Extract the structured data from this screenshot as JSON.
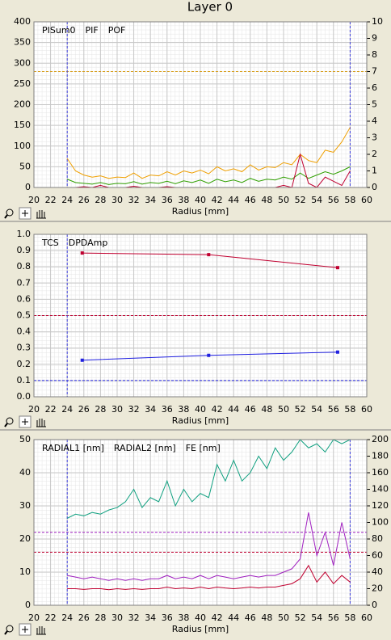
{
  "page_title": "Layer 0",
  "chart_data": [
    {
      "type": "line",
      "xlabel": "Radius [mm]",
      "xlim": [
        20,
        60
      ],
      "xticks": [
        20,
        22,
        24,
        26,
        28,
        30,
        32,
        34,
        36,
        38,
        40,
        42,
        44,
        46,
        48,
        50,
        52,
        54,
        56,
        58,
        60
      ],
      "ylim": [
        0,
        400
      ],
      "yticks": [
        0,
        50,
        100,
        150,
        200,
        250,
        300,
        350,
        400
      ],
      "y2lim": [
        0,
        10
      ],
      "y2ticks": [
        0,
        1,
        2,
        3,
        4,
        5,
        6,
        7,
        8,
        9,
        10
      ],
      "grid": true,
      "hlines": [
        {
          "value": 280,
          "color": "#d8a020"
        }
      ],
      "vlines": [
        {
          "value": 24,
          "color": "#4040e0"
        },
        {
          "value": 58,
          "color": "#4040e0"
        }
      ],
      "x": [
        24,
        25,
        26,
        27,
        28,
        29,
        30,
        31,
        32,
        33,
        34,
        35,
        36,
        37,
        38,
        39,
        40,
        41,
        42,
        43,
        44,
        45,
        46,
        47,
        48,
        49,
        50,
        51,
        52,
        53,
        54,
        55,
        56,
        57,
        58
      ],
      "series": [
        {
          "name": "PISum0",
          "color": "#f0a000",
          "values": [
            70,
            40,
            30,
            25,
            28,
            22,
            25,
            24,
            35,
            22,
            30,
            28,
            38,
            30,
            40,
            35,
            42,
            33,
            50,
            40,
            45,
            38,
            55,
            42,
            50,
            48,
            60,
            55,
            80,
            65,
            60,
            90,
            85,
            110,
            145
          ]
        },
        {
          "name": "PIF",
          "color": "#30a000",
          "values": [
            20,
            12,
            10,
            8,
            12,
            7,
            10,
            9,
            14,
            8,
            12,
            10,
            15,
            9,
            16,
            12,
            18,
            10,
            20,
            14,
            18,
            12,
            22,
            15,
            20,
            18,
            25,
            20,
            35,
            22,
            30,
            38,
            32,
            40,
            50
          ]
        },
        {
          "name": "POF",
          "color": "#c00030",
          "values": [
            0,
            0,
            2,
            0,
            5,
            0,
            0,
            0,
            3,
            0,
            0,
            0,
            2,
            0,
            0,
            0,
            0,
            0,
            0,
            0,
            0,
            0,
            0,
            0,
            0,
            0,
            5,
            0,
            80,
            10,
            0,
            25,
            15,
            5,
            40
          ]
        }
      ]
    },
    {
      "type": "line",
      "xlabel": "Radius [mm]",
      "xlim": [
        20,
        60
      ],
      "xticks": [
        20,
        22,
        24,
        26,
        28,
        30,
        32,
        34,
        36,
        38,
        40,
        42,
        44,
        46,
        48,
        50,
        52,
        54,
        56,
        58,
        60
      ],
      "ylim": [
        0,
        1
      ],
      "yticks": [
        {
          "value": 0,
          "label": "0.0"
        },
        0.1,
        0.2,
        0.3,
        0.4,
        0.5,
        0.6,
        0.7,
        0.8,
        0.9,
        {
          "value": 1,
          "label": "1.0"
        }
      ],
      "grid": true,
      "hlines": [
        {
          "value": 0.5,
          "color": "#c00030"
        },
        {
          "value": 0.1,
          "color": "#2020e0"
        }
      ],
      "vlines": [
        {
          "value": 24,
          "color": "#4040e0"
        }
      ],
      "x": [
        25.8,
        41,
        56.5
      ],
      "series": [
        {
          "name": "TCS",
          "color": "#2020e0",
          "values": [
            0.225,
            0.255,
            0.275
          ]
        },
        {
          "name": "DPDAmp",
          "color": "#c00030",
          "values": [
            0.885,
            0.875,
            0.795
          ]
        }
      ]
    },
    {
      "type": "line",
      "xlabel": "Radius [mm]",
      "xlim": [
        20,
        60
      ],
      "xticks": [
        20,
        22,
        24,
        26,
        28,
        30,
        32,
        34,
        36,
        38,
        40,
        42,
        44,
        46,
        48,
        50,
        52,
        54,
        56,
        58,
        60
      ],
      "ylim": [
        0,
        50
      ],
      "yticks": [
        0,
        10,
        20,
        30,
        40,
        50
      ],
      "y2lim": [
        0,
        200
      ],
      "y2ticks": [
        0,
        20,
        40,
        60,
        80,
        100,
        120,
        140,
        160,
        180,
        200
      ],
      "grid": true,
      "hlines": [
        {
          "value": 22,
          "color": "#a020c0"
        },
        {
          "value": 16,
          "color": "#c00030"
        }
      ],
      "vlines": [
        {
          "value": 24,
          "color": "#4040e0"
        },
        {
          "value": 58,
          "color": "#4040e0"
        }
      ],
      "x": [
        24,
        25,
        26,
        27,
        28,
        29,
        30,
        31,
        32,
        33,
        34,
        35,
        36,
        37,
        38,
        39,
        40,
        41,
        42,
        43,
        44,
        45,
        46,
        47,
        48,
        49,
        50,
        51,
        52,
        53,
        54,
        55,
        56,
        57,
        58
      ],
      "series": [
        {
          "name": "RADIAL1 [nm]",
          "color": "#a020c0",
          "values": [
            9,
            8.5,
            8,
            8.5,
            8,
            7.5,
            8,
            7.5,
            8,
            7.5,
            8,
            8,
            9,
            8,
            8.5,
            8,
            9,
            8,
            9,
            8.5,
            8,
            8.5,
            9,
            8.5,
            9,
            9,
            10,
            11,
            14,
            28,
            15,
            22,
            12,
            25,
            14
          ]
        },
        {
          "name": "RADIAL2 [nm]",
          "color": "#c00030",
          "values": [
            5,
            5,
            4.8,
            5,
            5,
            4.7,
            5,
            4.8,
            5,
            4.8,
            5,
            5,
            5.5,
            5,
            5.2,
            5,
            5.5,
            5,
            5.5,
            5.2,
            5,
            5.2,
            5.5,
            5.2,
            5.5,
            5.5,
            6,
            6.5,
            8,
            12,
            7,
            10,
            6.5,
            9,
            7
          ]
        },
        {
          "name": "FE [nm]",
          "color": "#10a080",
          "axis": "y2",
          "values": [
            105,
            110,
            108,
            112,
            110,
            115,
            118,
            125,
            140,
            118,
            130,
            125,
            150,
            120,
            140,
            125,
            135,
            130,
            170,
            150,
            175,
            150,
            160,
            180,
            165,
            190,
            175,
            185,
            200,
            190,
            195,
            185,
            200,
            195,
            200
          ]
        }
      ]
    }
  ]
}
